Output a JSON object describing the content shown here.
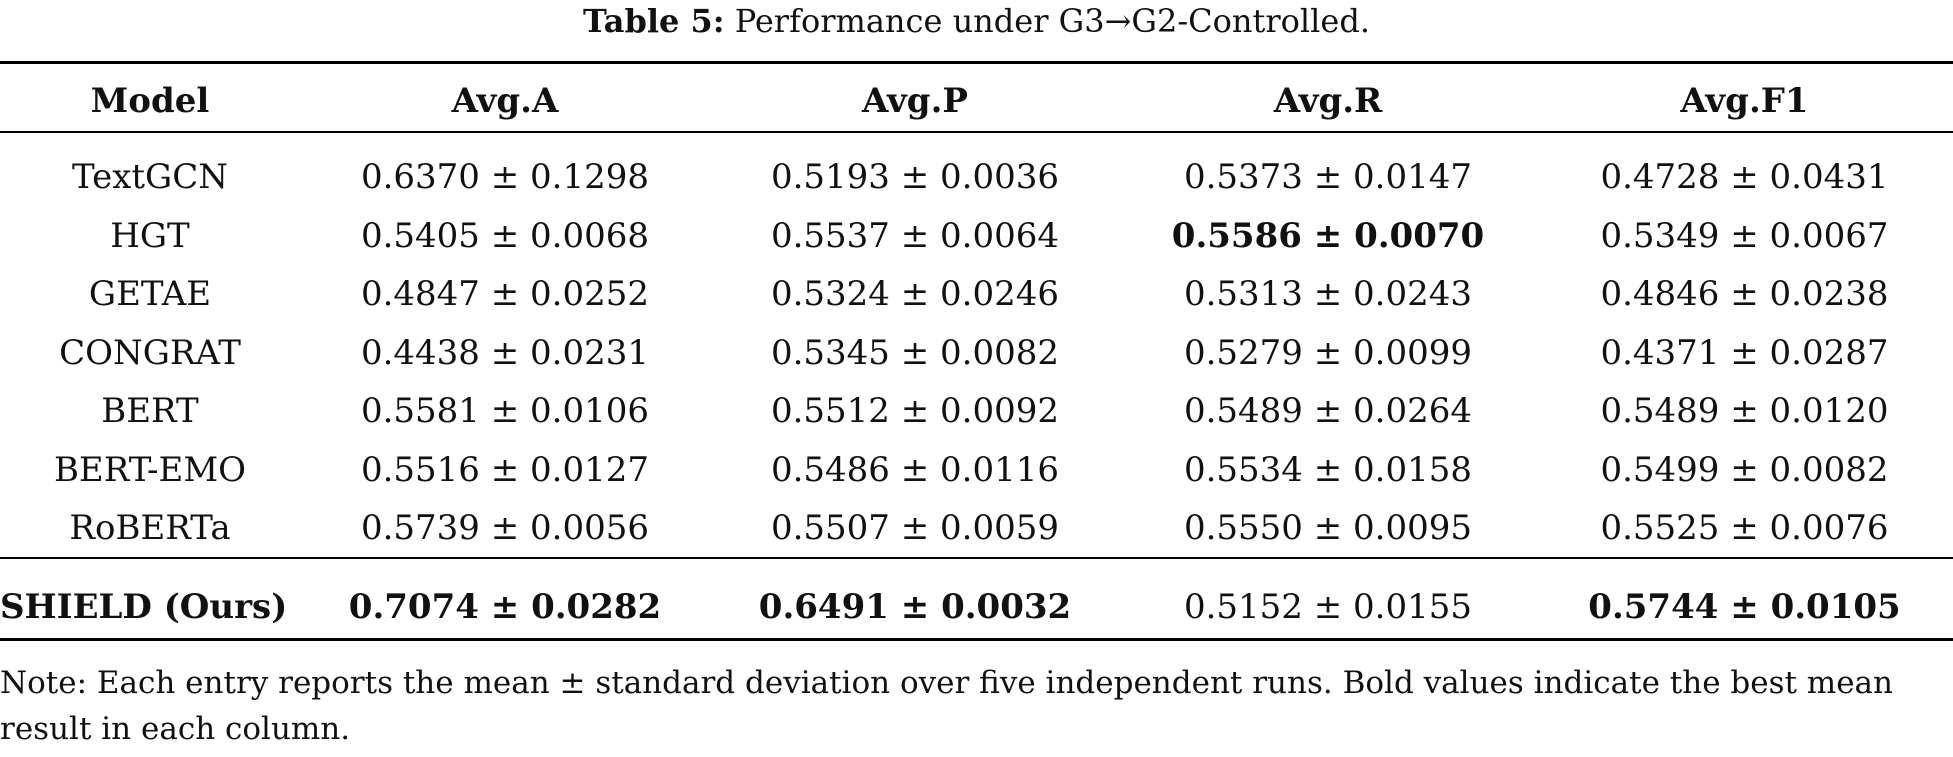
{
  "caption": {
    "label": "Table 5:",
    "text": "Performance under G3→G2-Controlled."
  },
  "table": {
    "headers": [
      "Model",
      "Avg.A",
      "Avg.P",
      "Avg.R",
      "Avg.F1"
    ],
    "rows": [
      {
        "model": "TextGCN",
        "a": "0.6370 ± 0.1298",
        "p": "0.5193 ± 0.0036",
        "r": "0.5373 ± 0.0147",
        "f1": "0.4728 ± 0.0431"
      },
      {
        "model": "HGT",
        "a": "0.5405 ± 0.0068",
        "p": "0.5537 ± 0.0064",
        "r": "0.5586 ± 0.0070",
        "f1": "0.5349 ± 0.0067"
      },
      {
        "model": "GETAE",
        "a": "0.4847 ± 0.0252",
        "p": "0.5324 ± 0.0246",
        "r": "0.5313 ± 0.0243",
        "f1": "0.4846 ± 0.0238"
      },
      {
        "model": "CONGRAT",
        "a": "0.4438 ± 0.0231",
        "p": "0.5345 ± 0.0082",
        "r": "0.5279 ± 0.0099",
        "f1": "0.4371 ± 0.0287"
      },
      {
        "model": "BERT",
        "a": "0.5581 ± 0.0106",
        "p": "0.5512 ± 0.0092",
        "r": "0.5489 ± 0.0264",
        "f1": "0.5489 ± 0.0120"
      },
      {
        "model": "BERT-EMO",
        "a": "0.5516 ± 0.0127",
        "p": "0.5486 ± 0.0116",
        "r": "0.5534 ± 0.0158",
        "f1": "0.5499 ± 0.0082"
      },
      {
        "model": "RoBERTa",
        "a": "0.5739 ± 0.0056",
        "p": "0.5507 ± 0.0059",
        "r": "0.5550 ± 0.0095",
        "f1": "0.5525 ± 0.0076"
      }
    ],
    "final_row": {
      "model": "SHIELD (Ours)",
      "a": "0.7074 ± 0.0282",
      "p": "0.6491 ± 0.0032",
      "r": "0.5152 ± 0.0155",
      "f1": "0.5744 ± 0.0105"
    }
  },
  "note": "Note: Each entry reports the mean ± standard deviation over five independent runs. Bold values indicate the best mean result in each column."
}
